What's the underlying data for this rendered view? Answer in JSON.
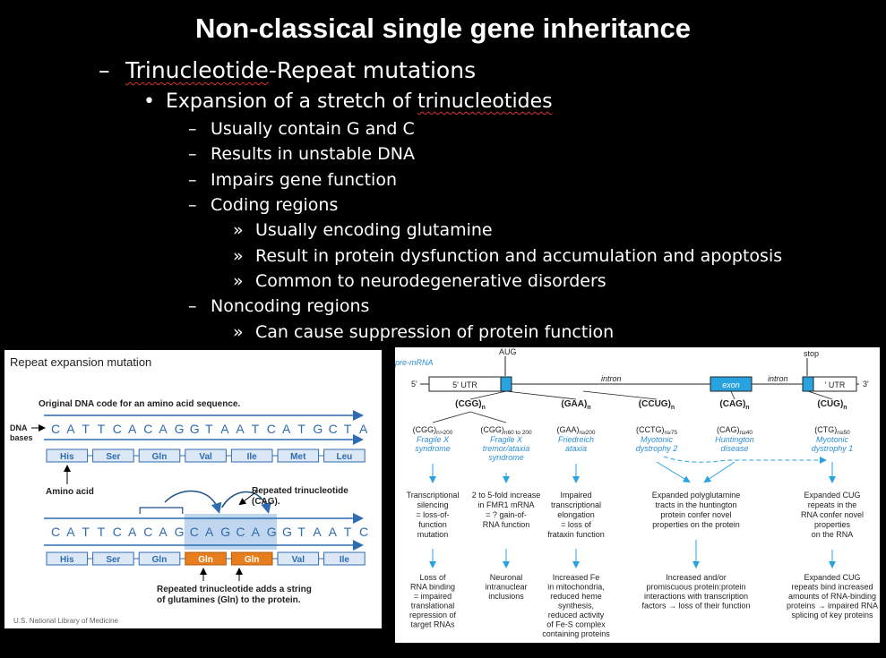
{
  "slide": {
    "title": "Non-classical single gene inheritance",
    "bullets": [
      {
        "marker": "–",
        "pre": "",
        "underlined": "Trinucleotide",
        "post": "-Repeat mutations"
      },
      {
        "marker": "•",
        "pre": "Expansion of a stretch of ",
        "underlined": "trinucleotides",
        "post": ""
      },
      {
        "marker": "–",
        "text": "Usually contain G and C"
      },
      {
        "marker": "–",
        "text": "Results in unstable DNA"
      },
      {
        "marker": "–",
        "text": "Impairs gene function"
      },
      {
        "marker": "–",
        "text": "Coding regions"
      },
      {
        "marker": "»",
        "text": "Usually encoding glutamine"
      },
      {
        "marker": "»",
        "text": "Result in protein dysfunction and accumulation and apoptosis"
      },
      {
        "marker": "»",
        "text": "Common to neurodegenerative disorders"
      },
      {
        "marker": "–",
        "text": "Noncoding regions"
      },
      {
        "marker": "»",
        "text": "Can cause suppression of protein function"
      }
    ]
  },
  "left_figure": {
    "title": "Repeat expansion mutation",
    "subtitle": "Original DNA code for an amino acid sequence.",
    "dna_label_1": "DNA",
    "dna_label_2": "bases",
    "original_bases": [
      "C",
      "A",
      "T",
      "T",
      "C",
      "A",
      "C",
      "A",
      "G",
      "G",
      "T",
      "A",
      "A",
      "T",
      "C",
      "A",
      "T",
      "G",
      "C",
      "T",
      "A"
    ],
    "original_aminos": [
      "His",
      "Ser",
      "Gln",
      "Val",
      "Ile",
      "Met",
      "Leu"
    ],
    "amino_acid_label": "Amino acid",
    "repeat_label_1": "Repeated trinucleotide",
    "repeat_label_2": "(CAG).",
    "mutated_bases": [
      "C",
      "A",
      "T",
      "T",
      "C",
      "A",
      "C",
      "A",
      "G",
      "C",
      "A",
      "G",
      "C",
      "A",
      "G",
      "G",
      "T",
      "A",
      "A",
      "T",
      "C"
    ],
    "mutated_aminos": [
      "His",
      "Ser",
      "Gln",
      "Gln",
      "Gln",
      "Val",
      "Ile"
    ],
    "bottom_label_1": "Repeated trinucleotide adds a string",
    "bottom_label_2": "of glutamines (Gln) to the  protein.",
    "credit": "U.S. National Library of Medicine",
    "colors": {
      "blue": "#2f6bb0",
      "box_fill": "#dce8f5",
      "orange": "#e87d1e",
      "highlight": "#bfd6ee"
    }
  },
  "right_figure": {
    "pre_mrna": "pre-mRNA",
    "aug": "AUG",
    "stop": "stop",
    "five_prime": "5'",
    "three_prime": "3'",
    "utr5": "5' UTR",
    "utr3": "' UTR",
    "intron": "intron",
    "exon": "exon",
    "columns": [
      {
        "repeat": "(CGG)",
        "sub": "n",
        "variants": [
          {
            "seq": "(CGG)",
            "n": "n>200",
            "disease": [
              "Fragile X",
              "syndrome"
            ],
            "mech": [
              "Transcriptional",
              "silencing",
              "= loss-of-",
              "function",
              "mutation"
            ],
            "outcome": [
              "Loss of",
              "RNA binding",
              "= impaired",
              "translational",
              "repression of",
              "target RNAs"
            ]
          },
          {
            "seq": "(CGG)",
            "n": "n60 to 200",
            "disease": [
              "Fragile X",
              "tremor/ataxia",
              "syndrome"
            ],
            "mech": [
              "2 to 5-fold increase",
              "in FMR1 mRNA",
              "= ? gain-of-",
              "RNA function"
            ],
            "outcome": [
              "Neuronal",
              "intranuclear",
              "inclusions"
            ]
          }
        ]
      },
      {
        "repeat": "(GAA)",
        "sub": "n",
        "variants": [
          {
            "seq": "(GAA)",
            "n": "n≥200",
            "disease": [
              "Friedreich",
              "ataxia"
            ],
            "mech": [
              "Impaired",
              "transcriptional",
              "elongation",
              "= loss of",
              "frataxin function"
            ],
            "outcome": [
              "Increased Fe",
              "in mitochondria,",
              "reduced heme",
              "synthesis,",
              "reduced activity",
              "of Fe-S complex",
              "containing proteins"
            ]
          }
        ]
      },
      {
        "repeat": "(CCUG)",
        "sub": "n",
        "variants": [
          {
            "seq": "(CCTG)",
            "n": "n≥75",
            "disease": [
              "Myotonic",
              "dystrophy 2"
            ]
          }
        ]
      },
      {
        "repeat": "(CAG)",
        "sub": "n",
        "variants": [
          {
            "seq": "(CAG)",
            "n": "n≥40",
            "disease": [
              "Huntington",
              "disease"
            ]
          }
        ]
      },
      {
        "repeat": "(CUG)",
        "sub": "n",
        "variants": [
          {
            "seq": "(CTG)",
            "n": "n≥50",
            "disease": [
              "Myotonic",
              "dystrophy 1"
            ]
          }
        ]
      }
    ],
    "shared_mech_a": [
      "Expanded polyglutamine",
      "tracts in the huntington",
      "protein confer novel",
      "properties on the protein"
    ],
    "shared_mech_b": [
      "Expanded CUG",
      "repeats in the",
      "RNA confer novel",
      "properties",
      "on the RNA"
    ],
    "shared_outcome_a": [
      "Increased and/or",
      "promiscuous protein:protein",
      "interactions with transcription",
      "factors → loss of their function"
    ],
    "shared_outcome_b": [
      "Expanded CUG",
      "repeats bind increased",
      "amounts of RNA-binding",
      "proteins → impaired RNA",
      "splicing of key proteins"
    ],
    "colors": {
      "cyan": "#29a3e0",
      "italic_blue": "#2c8fd6"
    }
  }
}
